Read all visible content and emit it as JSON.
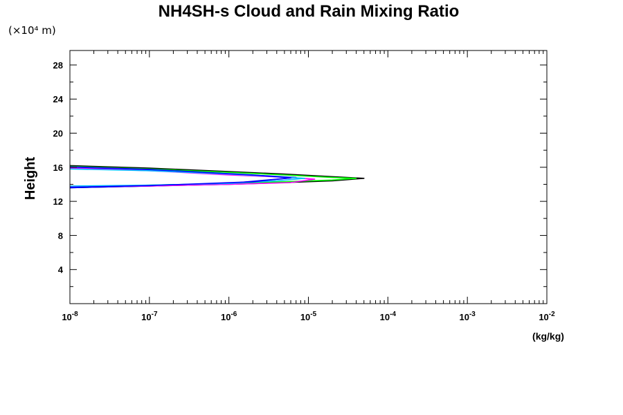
{
  "chart_data": {
    "type": "line",
    "title": "NH4SH-s Cloud and Rain Mixing Ratio",
    "y_scale_label": "(×10⁴ m)",
    "ylabel": "Height",
    "xlabel": "(kg/kg)",
    "x_scale": "log",
    "xlim": [
      1e-08,
      0.01
    ],
    "ylim": [
      0,
      29.7
    ],
    "x_ticks": [
      {
        "value": 1e-08,
        "mantissa": "10",
        "exp": "-8"
      },
      {
        "value": 1e-07,
        "mantissa": "10",
        "exp": "-7"
      },
      {
        "value": 1e-06,
        "mantissa": "10",
        "exp": "-6"
      },
      {
        "value": 1e-05,
        "mantissa": "10",
        "exp": "-5"
      },
      {
        "value": 0.0001,
        "mantissa": "10",
        "exp": "-4"
      },
      {
        "value": 0.001,
        "mantissa": "10",
        "exp": "-3"
      },
      {
        "value": 0.01,
        "mantissa": "10",
        "exp": "-2"
      }
    ],
    "y_ticks": [
      {
        "value": 4,
        "label": "4"
      },
      {
        "value": 8,
        "label": "8"
      },
      {
        "value": 12,
        "label": "12"
      },
      {
        "value": 16,
        "label": "16"
      },
      {
        "value": 20,
        "label": "20"
      },
      {
        "value": 24,
        "label": "24"
      },
      {
        "value": 28,
        "label": "28"
      }
    ],
    "y_minor_step": 2,
    "series": [
      {
        "color": "#000000",
        "points": [
          [
            1e-08,
            16.2
          ],
          [
            1e-07,
            15.9
          ],
          [
            1e-06,
            15.5
          ],
          [
            5e-06,
            15.2
          ],
          [
            2e-05,
            14.9
          ],
          [
            5e-05,
            14.7
          ],
          [
            2e-05,
            14.4
          ],
          [
            5e-06,
            14.2
          ],
          [
            1e-06,
            14.0
          ],
          [
            1e-07,
            13.8
          ],
          [
            1e-08,
            13.6
          ]
        ]
      },
      {
        "color": "#00ff00",
        "points": [
          [
            1e-08,
            16.1
          ],
          [
            1e-07,
            15.8
          ],
          [
            1e-06,
            15.4
          ],
          [
            5e-06,
            15.1
          ],
          [
            2e-05,
            14.8
          ],
          [
            4e-05,
            14.7
          ],
          [
            2e-05,
            14.5
          ],
          [
            5e-06,
            14.3
          ],
          [
            1e-06,
            14.1
          ],
          [
            1e-07,
            13.9
          ],
          [
            1e-08,
            13.7
          ]
        ]
      },
      {
        "color": "#0000ff",
        "points": [
          [
            1e-08,
            16.0
          ],
          [
            1e-07,
            15.7
          ],
          [
            1e-06,
            15.2
          ],
          [
            3e-06,
            15.0
          ],
          [
            7e-06,
            14.8
          ],
          [
            3e-06,
            14.5
          ],
          [
            1e-06,
            14.1
          ],
          [
            1e-07,
            13.8
          ],
          [
            1e-08,
            13.6
          ]
        ]
      },
      {
        "color": "#ff00ff",
        "points": [
          [
            1e-08,
            15.9
          ],
          [
            1e-07,
            15.6
          ],
          [
            1e-06,
            15.1
          ],
          [
            6e-06,
            14.8
          ],
          [
            1.2e-05,
            14.6
          ],
          [
            6e-06,
            14.2
          ],
          [
            1e-06,
            14.0
          ],
          [
            1e-07,
            13.8
          ],
          [
            1e-08,
            13.7
          ]
        ]
      },
      {
        "color": "#00bfff",
        "points": [
          [
            1e-08,
            15.8
          ],
          [
            1e-07,
            15.6
          ],
          [
            1e-06,
            15.2
          ],
          [
            4e-06,
            14.9
          ],
          [
            9e-06,
            14.7
          ],
          [
            4e-06,
            14.4
          ],
          [
            1e-06,
            14.1
          ],
          [
            1e-07,
            13.9
          ],
          [
            1e-08,
            13.8
          ]
        ]
      },
      {
        "color": "#0000ff",
        "points": [
          [
            1e-08,
            16.05
          ],
          [
            1e-07,
            15.75
          ],
          [
            2e-06,
            15.1
          ],
          [
            6e-06,
            14.75
          ],
          [
            2e-06,
            14.3
          ],
          [
            1e-07,
            13.85
          ],
          [
            1e-08,
            13.65
          ]
        ]
      }
    ]
  }
}
